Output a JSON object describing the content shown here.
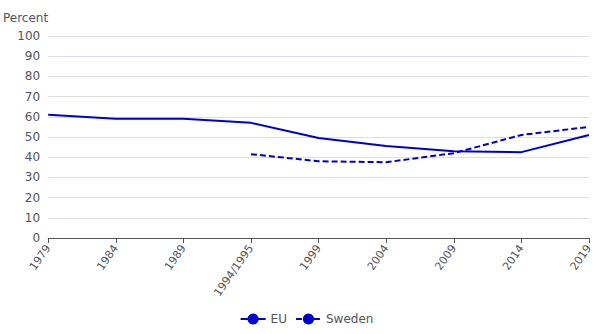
{
  "chart_data": {
    "type": "line",
    "categories": [
      "1979",
      "1984",
      "1989",
      "1994/1995",
      "1999",
      "2004",
      "2009",
      "2014",
      "2019"
    ],
    "series": [
      {
        "name": "EU",
        "color": "#0000cc",
        "line_style": "solid",
        "values": [
          61,
          59,
          59,
          57,
          49.5,
          45.5,
          43,
          42.5,
          51
        ]
      },
      {
        "name": "Sweden",
        "color": "#0000cc",
        "line_style": "dashed",
        "values": [
          null,
          null,
          null,
          41.5,
          38,
          37.5,
          42,
          51,
          55
        ]
      }
    ],
    "ylabel": "Percent",
    "ylim": [
      0,
      100
    ],
    "yticks": [
      0,
      10,
      20,
      30,
      40,
      50,
      60,
      70,
      80,
      90,
      100
    ],
    "grid": true,
    "legend": "bottom"
  }
}
